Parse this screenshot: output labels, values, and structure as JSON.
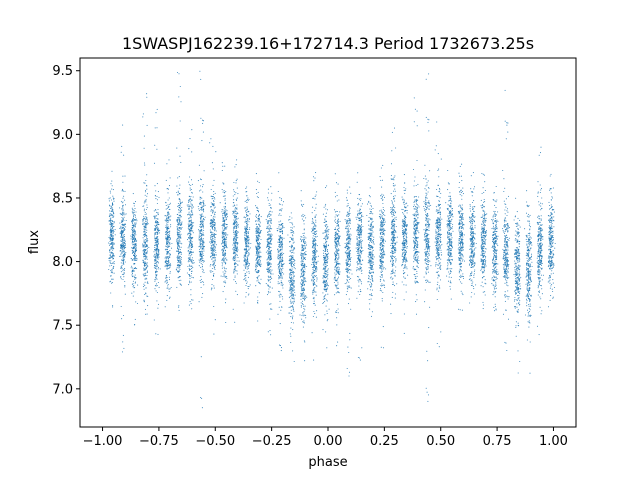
{
  "chart_data": {
    "type": "scatter",
    "title": "1SWASPJ162239.16+172714.3 Period 1732673.25s",
    "xlabel": "phase",
    "ylabel": "flux",
    "xlim": [
      -1.1,
      1.1
    ],
    "ylim": [
      6.7,
      9.6
    ],
    "xticks": [
      -1.0,
      -0.75,
      -0.5,
      -0.25,
      0.0,
      0.25,
      0.5,
      0.75,
      1.0
    ],
    "xtick_labels": [
      "−1.00",
      "−0.75",
      "−0.50",
      "−0.25",
      "0.00",
      "0.25",
      "0.50",
      "0.75",
      "1.00"
    ],
    "yticks": [
      7.0,
      7.5,
      8.0,
      8.5,
      9.0,
      9.5
    ],
    "ytick_labels": [
      "7.0",
      "7.5",
      "8.0",
      "8.5",
      "9.0",
      "9.5"
    ],
    "grid": false,
    "point_color": "#1f77b4",
    "series": [
      {
        "clusters": [
          {
            "x": -0.96,
            "center": 8.2,
            "spread": 0.17,
            "min": 7.6,
            "max": 8.8
          },
          {
            "x": -0.91,
            "center": 8.15,
            "spread": 0.17,
            "min": 7.2,
            "max": 9.1
          },
          {
            "x": -0.86,
            "center": 8.15,
            "spread": 0.16,
            "min": 7.5,
            "max": 8.7
          },
          {
            "x": -0.81,
            "center": 8.1,
            "spread": 0.2,
            "min": 7.2,
            "max": 9.35
          },
          {
            "x": -0.76,
            "center": 8.15,
            "spread": 0.18,
            "min": 7.4,
            "max": 9.25
          },
          {
            "x": -0.71,
            "center": 8.15,
            "spread": 0.17,
            "min": 7.4,
            "max": 8.8
          },
          {
            "x": -0.66,
            "center": 8.2,
            "spread": 0.19,
            "min": 7.6,
            "max": 9.5
          },
          {
            "x": -0.61,
            "center": 8.2,
            "spread": 0.18,
            "min": 7.6,
            "max": 9.05
          },
          {
            "x": -0.56,
            "center": 8.2,
            "spread": 0.2,
            "min": 6.85,
            "max": 9.5
          },
          {
            "x": -0.51,
            "center": 8.2,
            "spread": 0.18,
            "min": 7.4,
            "max": 9.15
          },
          {
            "x": -0.46,
            "center": 8.2,
            "spread": 0.17,
            "min": 7.5,
            "max": 8.9
          },
          {
            "x": -0.41,
            "center": 8.2,
            "spread": 0.17,
            "min": 7.5,
            "max": 8.8
          },
          {
            "x": -0.36,
            "center": 8.15,
            "spread": 0.16,
            "min": 7.5,
            "max": 8.6
          },
          {
            "x": -0.31,
            "center": 8.15,
            "spread": 0.16,
            "min": 7.5,
            "max": 8.7
          },
          {
            "x": -0.26,
            "center": 8.1,
            "spread": 0.17,
            "min": 7.4,
            "max": 8.6
          },
          {
            "x": -0.21,
            "center": 8.05,
            "spread": 0.18,
            "min": 7.3,
            "max": 8.7
          },
          {
            "x": -0.16,
            "center": 7.9,
            "spread": 0.2,
            "min": 7.1,
            "max": 8.5
          },
          {
            "x": -0.11,
            "center": 7.95,
            "spread": 0.2,
            "min": 7.2,
            "max": 8.6
          },
          {
            "x": -0.06,
            "center": 8.05,
            "spread": 0.18,
            "min": 7.2,
            "max": 8.7
          },
          {
            "x": -0.01,
            "center": 8.0,
            "spread": 0.18,
            "min": 7.1,
            "max": 8.6
          },
          {
            "x": 0.04,
            "center": 8.1,
            "spread": 0.17,
            "min": 7.3,
            "max": 8.7
          },
          {
            "x": 0.09,
            "center": 8.1,
            "spread": 0.17,
            "min": 7.1,
            "max": 8.6
          },
          {
            "x": 0.14,
            "center": 8.15,
            "spread": 0.17,
            "min": 7.2,
            "max": 8.7
          },
          {
            "x": 0.19,
            "center": 8.1,
            "spread": 0.17,
            "min": 7.4,
            "max": 8.6
          },
          {
            "x": 0.24,
            "center": 8.15,
            "spread": 0.18,
            "min": 7.3,
            "max": 8.8
          },
          {
            "x": 0.29,
            "center": 8.2,
            "spread": 0.18,
            "min": 7.5,
            "max": 9.05
          },
          {
            "x": 0.34,
            "center": 8.2,
            "spread": 0.17,
            "min": 7.4,
            "max": 8.7
          },
          {
            "x": 0.39,
            "center": 8.2,
            "spread": 0.18,
            "min": 7.5,
            "max": 9.3
          },
          {
            "x": 0.44,
            "center": 8.2,
            "spread": 0.2,
            "min": 6.9,
            "max": 9.5
          },
          {
            "x": 0.49,
            "center": 8.2,
            "spread": 0.18,
            "min": 7.3,
            "max": 9.1
          },
          {
            "x": 0.54,
            "center": 8.2,
            "spread": 0.17,
            "min": 7.6,
            "max": 8.9
          },
          {
            "x": 0.59,
            "center": 8.2,
            "spread": 0.17,
            "min": 7.6,
            "max": 8.8
          },
          {
            "x": 0.64,
            "center": 8.15,
            "spread": 0.16,
            "min": 7.6,
            "max": 8.7
          },
          {
            "x": 0.69,
            "center": 8.15,
            "spread": 0.16,
            "min": 7.6,
            "max": 8.7
          },
          {
            "x": 0.74,
            "center": 8.1,
            "spread": 0.17,
            "min": 7.6,
            "max": 8.6
          },
          {
            "x": 0.79,
            "center": 8.05,
            "spread": 0.18,
            "min": 7.3,
            "max": 9.4
          },
          {
            "x": 0.84,
            "center": 7.95,
            "spread": 0.2,
            "min": 7.1,
            "max": 8.5
          },
          {
            "x": 0.89,
            "center": 7.95,
            "spread": 0.2,
            "min": 7.1,
            "max": 8.6
          },
          {
            "x": 0.94,
            "center": 8.1,
            "spread": 0.18,
            "min": 7.4,
            "max": 8.9
          },
          {
            "x": 0.99,
            "center": 8.15,
            "spread": 0.17,
            "min": 7.5,
            "max": 8.7
          }
        ]
      }
    ]
  }
}
